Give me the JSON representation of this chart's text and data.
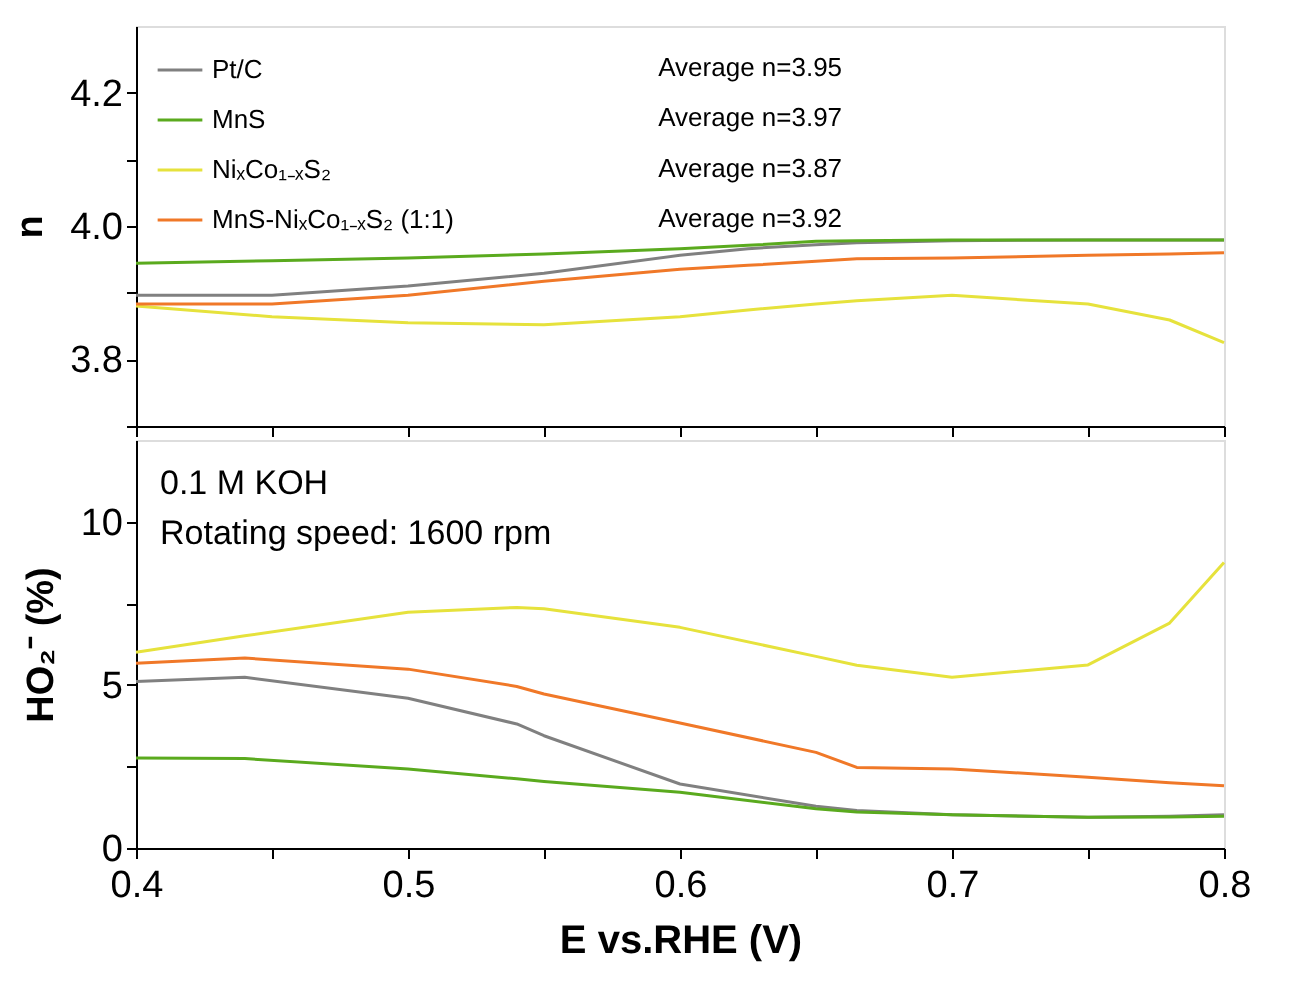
{
  "chart_data": [
    {
      "type": "line",
      "ylabel": "n",
      "xlim": [
        0.4,
        0.8
      ],
      "ylim": [
        3.7,
        4.3
      ],
      "xticks": [
        0.4,
        {
          "value": 0.45,
          "label": null
        },
        0.5,
        {
          "value": 0.55,
          "label": null
        },
        0.6,
        {
          "value": 0.65,
          "label": null
        },
        0.7,
        {
          "value": 0.75,
          "label": null
        },
        0.8
      ],
      "yticks": [
        {
          "value": 3.7,
          "label": null
        },
        3.8,
        {
          "value": 3.9,
          "label": null
        },
        {
          "value": 4,
          "label": "4.0"
        },
        {
          "value": 4.1,
          "label": null
        },
        4.2
      ],
      "tick_labels": "y",
      "legend": "top left",
      "marker": "none",
      "line_style": "solid",
      "grid": false,
      "x": [
        0.4,
        0.45,
        0.5,
        0.55,
        0.6,
        0.625,
        0.65,
        0.665,
        0.7,
        0.75,
        0.78,
        0.8
      ],
      "series": [
        {
          "name": "Pt/C",
          "color": "#808080",
          "values": [
            3.896,
            3.896,
            3.91,
            3.929,
            3.956,
            3.966,
            3.972,
            3.975,
            3.978,
            3.979,
            3.979,
            3.979
          ]
        },
        {
          "name": "MnS",
          "color": "#5aaa1e",
          "values": [
            3.944,
            3.948,
            3.952,
            3.958,
            3.966,
            3.971,
            3.977,
            3.978,
            3.979,
            3.979,
            3.979,
            3.979
          ]
        },
        {
          "name": "NiₓCo₁₋ₓS₂",
          "color": "#e6e23c",
          "values": [
            3.88,
            3.864,
            3.855,
            3.852,
            3.864,
            3.874,
            3.883,
            3.888,
            3.896,
            3.883,
            3.859,
            3.825
          ]
        },
        {
          "name": "MnS-NiₓCo₁₋ₓS₂  (1:1)",
          "color": "#f07828",
          "values": [
            3.883,
            3.883,
            3.896,
            3.917,
            3.935,
            3.941,
            3.947,
            3.951,
            3.952,
            3.956,
            3.958,
            3.96
          ]
        }
      ],
      "annotations": [
        "Average n=3.95",
        "Average n=3.97",
        "Average n=3.87",
        "Average n=3.92"
      ]
    },
    {
      "type": "line",
      "xlabel": "E vs.RHE (V)",
      "ylabel": "HO₂⁻ (%)",
      "xlim": [
        0.4,
        0.8
      ],
      "ylim": [
        0,
        12.5
      ],
      "xticks": [
        0.4,
        {
          "value": 0.45,
          "label": null
        },
        0.5,
        {
          "value": 0.55,
          "label": null
        },
        0.6,
        {
          "value": 0.65,
          "label": null
        },
        0.7,
        {
          "value": 0.75,
          "label": null
        },
        0.8
      ],
      "yticks": [
        0,
        {
          "value": 2.5,
          "label": null
        },
        5,
        {
          "value": 7.5,
          "label": null
        },
        10
      ],
      "marker": "none",
      "line_style": "solid",
      "grid": false,
      "x": [
        0.4,
        0.44,
        0.5,
        0.54,
        0.55,
        0.6,
        0.65,
        0.665,
        0.7,
        0.75,
        0.78,
        0.8
      ],
      "series": [
        {
          "color": "#808080",
          "values": [
            5.1,
            5.23,
            4.59,
            3.8,
            3.44,
            1.96,
            1.28,
            1.15,
            1.02,
            0.94,
            0.97,
            1.02
          ]
        },
        {
          "color": "#5aaa1e",
          "values": [
            2.76,
            2.74,
            2.42,
            2.12,
            2.04,
            1.71,
            1.2,
            1.1,
            1.02,
            0.94,
            0.95,
            0.97
          ]
        },
        {
          "color": "#e6e23c",
          "values": [
            6.0,
            6.5,
            7.22,
            7.37,
            7.33,
            6.76,
            5.87,
            5.6,
            5.23,
            5.61,
            6.89,
            8.75
          ]
        },
        {
          "color": "#f07828",
          "values": [
            5.66,
            5.82,
            5.48,
            4.95,
            4.72,
            3.83,
            2.93,
            2.47,
            2.42,
            2.17,
            2.0,
            1.91
          ]
        }
      ],
      "annotations": [
        "0.1 M KOH",
        "Rotating speed: 1600 rpm"
      ]
    }
  ]
}
